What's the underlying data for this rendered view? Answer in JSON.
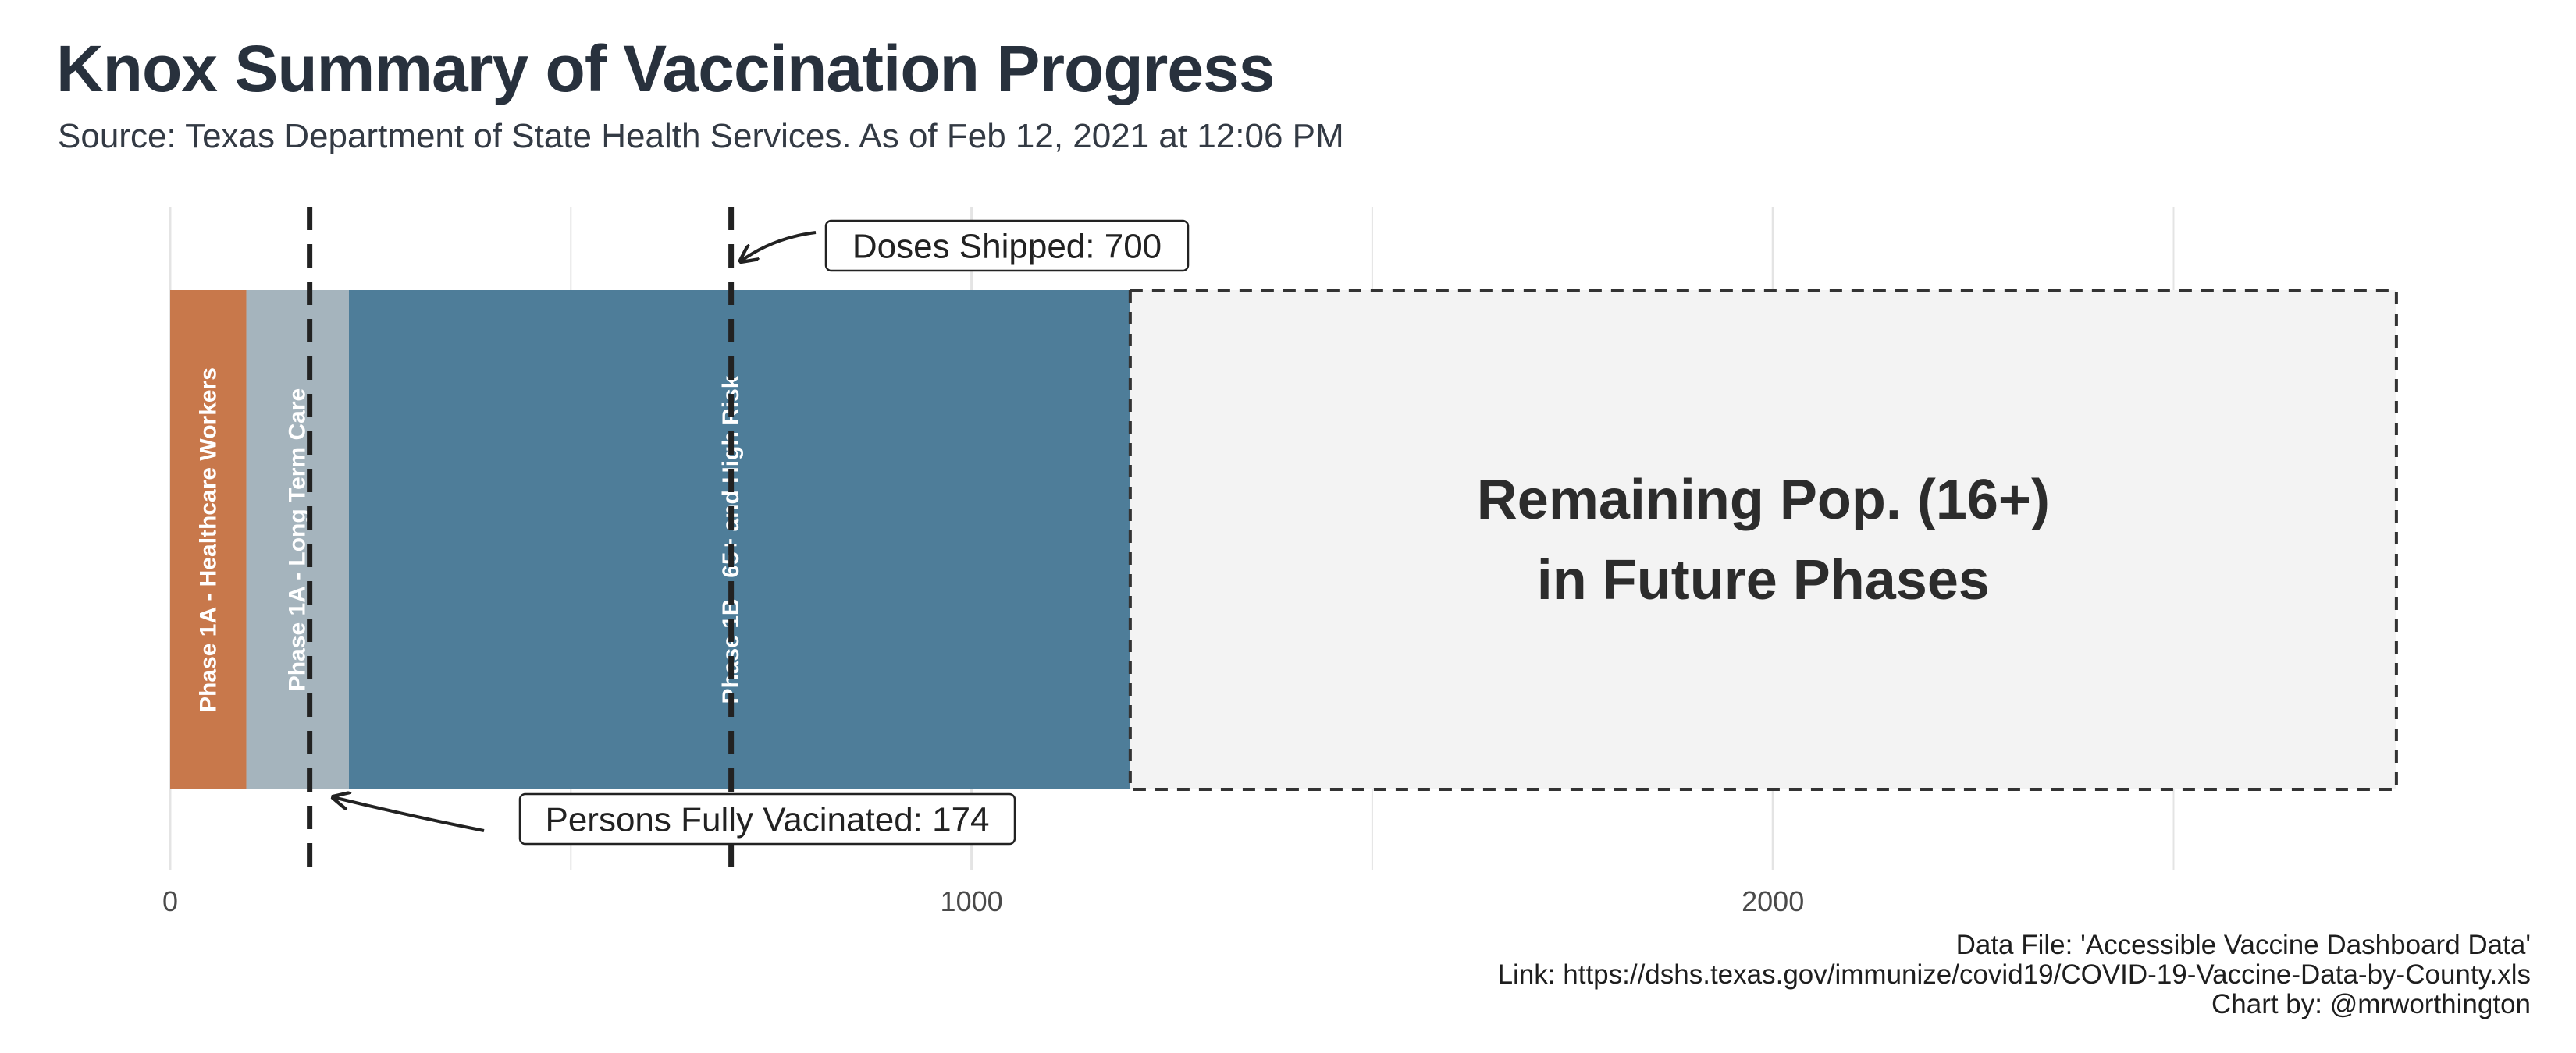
{
  "header": {
    "title": "Knox Summary of Vaccination Progress",
    "subtitle": "Source: Texas Department of State Health Services. As of Feb 12, 2021 at 12:06 PM"
  },
  "footer": {
    "data_file": "Data File: 'Accessible Vaccine Dashboard Data'",
    "link": "Link: https://dshs.texas.gov/immunize/covid19/COVID-19-Vaccine-Data-by-County.xls",
    "credit": "Chart by: @mrworthington"
  },
  "chart_data": {
    "type": "bar",
    "orientation": "horizontal-stacked",
    "xlim": [
      0,
      2800
    ],
    "x_ticks": [
      0,
      1000,
      2000
    ],
    "x_tick_labels": [
      "0",
      "1000",
      "2000"
    ],
    "grid": true,
    "segments": [
      {
        "name": "Phase 1A - Healthcare Workers",
        "value": 95,
        "color": "#c8784b"
      },
      {
        "name": "Phase 1A - Long Term Care",
        "value": 128,
        "color": "#a5b4bd"
      },
      {
        "name": "Phase 1B - 65+ and High Risk",
        "value": 975,
        "color": "#4e7d99"
      }
    ],
    "remaining": {
      "label_line1": "Remaining Pop. (16+)",
      "label_line2": "in Future Phases",
      "value": 1580,
      "color": "#f3f3f3"
    },
    "markers": [
      {
        "label": "Doses Shipped: 700",
        "value": 700
      },
      {
        "label": "Persons Fully Vacinated: 174",
        "value": 174
      }
    ]
  }
}
